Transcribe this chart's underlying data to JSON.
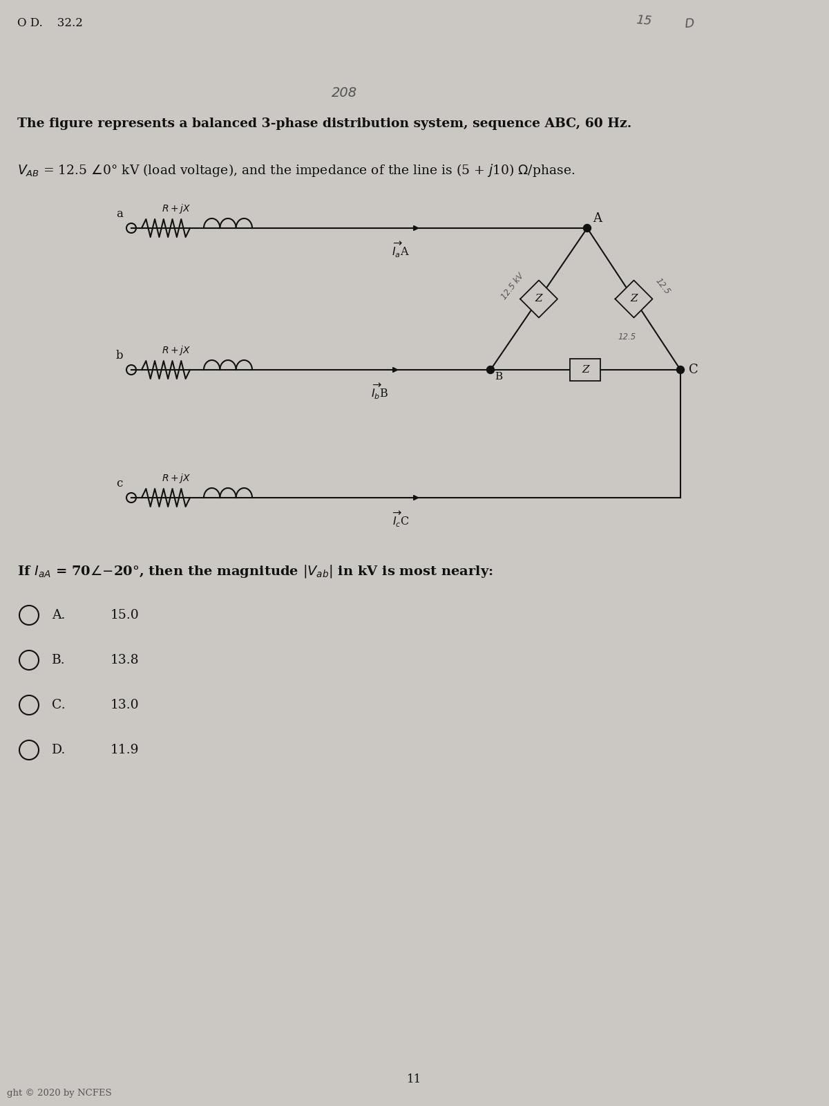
{
  "bg_color": "#cbc7c2",
  "title_line1": "The figure represents a balanced 3-phase distribution system, sequence ABC, 60 Hz.",
  "title_line2_v1": "V",
  "title_line2_rest": " = 12.5 ∏0° kV (load voltage), and the impedance of the line is (5 + j10) Ω/phase.",
  "header_prev": "O D.    32.2",
  "question_text_1": "If I",
  "question_text_2": " = 70∏-20°, then the magnitude |V",
  "question_text_3": "| in kV is most nearly:",
  "options": [
    {
      "letter": "A.",
      "value": "15.0"
    },
    {
      "letter": "B.",
      "value": "13.8"
    },
    {
      "letter": "C.",
      "value": "13.0"
    },
    {
      "letter": "D.",
      "value": "11.9"
    }
  ],
  "page_number": "11",
  "copyright": "ght © 2020 by NCFES",
  "text_color": "#111111",
  "text_color_mid": "#555555",
  "text_color_light": "#888888"
}
